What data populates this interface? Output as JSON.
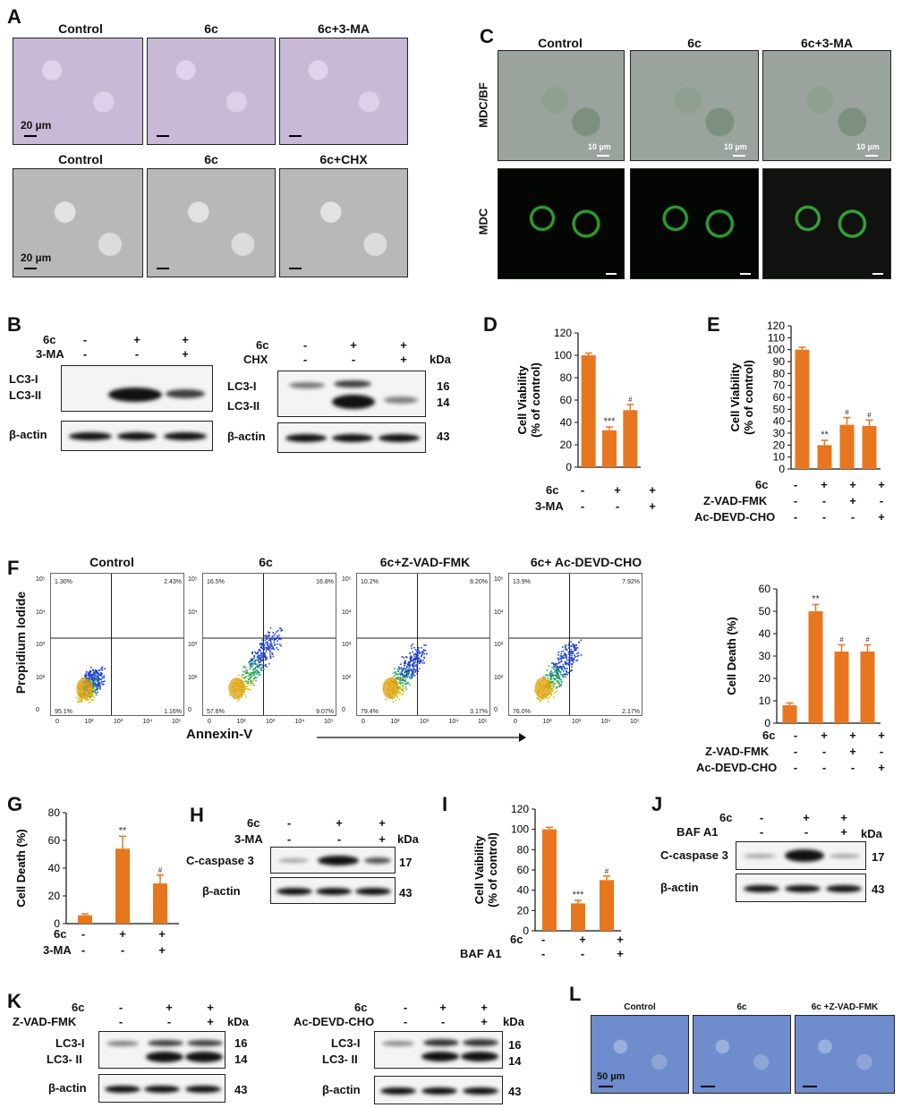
{
  "panels": {
    "A": {
      "label": "A",
      "row1": [
        "Control",
        "6c",
        "6c+3-MA"
      ],
      "row2": [
        "Control",
        "6c",
        "6c+CHX"
      ],
      "scale": "20 µm"
    },
    "C": {
      "label": "C",
      "cols": [
        "Control",
        "6c",
        "6c+3-MA"
      ],
      "rows": [
        "MDC/BF",
        "MDC"
      ],
      "scale": "10 µm"
    },
    "B": {
      "label": "B",
      "left": {
        "row_labels": [
          "6c",
          "3-MA"
        ],
        "signs": [
          [
            "-",
            "+",
            "+"
          ],
          [
            "-",
            "-",
            "+"
          ]
        ],
        "bands": [
          "LC3-I",
          "LC3-II"
        ],
        "loading": "β-actin"
      },
      "right": {
        "row_labels": [
          "6c",
          "CHX"
        ],
        "signs": [
          [
            "-",
            "+",
            "+"
          ],
          [
            "-",
            "-",
            "+"
          ]
        ],
        "bands": [
          "LC3-I",
          "LC3-II"
        ],
        "loading": "β-actin",
        "kda_label": "kDa",
        "kda": [
          "16",
          "14",
          "43"
        ]
      }
    },
    "D": {
      "label": "D",
      "row_labels": [
        "6c",
        "3-MA"
      ],
      "signs": [
        [
          "-",
          "+",
          "+"
        ],
        [
          "-",
          "-",
          "+"
        ]
      ]
    },
    "E": {
      "label": "E",
      "row_labels": [
        "6c",
        "Z-VAD-FMK",
        "Ac-DEVD-CHO"
      ],
      "signs": [
        [
          "-",
          "+",
          "+",
          "+"
        ],
        [
          "-",
          "-",
          "+",
          "-"
        ],
        [
          "-",
          "-",
          "-",
          "+"
        ]
      ]
    },
    "F": {
      "label": "F",
      "titles": [
        "Control",
        "6c",
        "6c+Z-VAD-FMK",
        "6c+ Ac-DEVD-CHO"
      ],
      "ylabel": "Propidium Iodide",
      "xlabel": "Annexin-V",
      "quadrants": [
        [
          "1.30%",
          "2.43%",
          "95.1%",
          "1.16%"
        ],
        [
          "16.5%",
          "16.8%",
          "57.6%",
          "9.07%"
        ],
        [
          "10.2%",
          "8.20%",
          "79.4%",
          "3.17%"
        ],
        [
          "13.9%",
          "7.92%",
          "76.0%",
          "2.17%"
        ]
      ],
      "ticks": [
        "0",
        "10²",
        "10³",
        "10⁴",
        "10⁵"
      ],
      "bar_row_labels": [
        "6c",
        "Z-VAD-FMK",
        "Ac-DEVD-CHO"
      ],
      "bar_signs": [
        [
          "-",
          "+",
          "+",
          "+"
        ],
        [
          "-",
          "-",
          "+",
          "-"
        ],
        [
          "-",
          "-",
          "-",
          "+"
        ]
      ]
    },
    "G": {
      "label": "G",
      "row_labels": [
        "6c",
        "3-MA"
      ],
      "signs": [
        [
          "-",
          "+",
          "+"
        ],
        [
          "-",
          "-",
          "+"
        ]
      ]
    },
    "H": {
      "label": "H",
      "row_labels": [
        "6c",
        "3-MA"
      ],
      "signs": [
        [
          "-",
          "+",
          "+"
        ],
        [
          "-",
          "-",
          "+"
        ]
      ],
      "bands": [
        "C-caspase 3",
        "β-actin"
      ],
      "kda_label": "kDa",
      "kda": [
        "17",
        "43"
      ]
    },
    "I": {
      "label": "I",
      "row_labels": [
        "6c",
        "BAF A1"
      ],
      "signs": [
        [
          "-",
          "+",
          "+"
        ],
        [
          "-",
          "-",
          "+"
        ]
      ]
    },
    "J": {
      "label": "J",
      "row_labels": [
        "6c",
        "BAF A1"
      ],
      "signs": [
        [
          "-",
          "+",
          "+"
        ],
        [
          "-",
          "-",
          "+"
        ]
      ],
      "bands": [
        "C-caspase 3",
        "β-actin"
      ],
      "kda_label": "kDa",
      "kda": [
        "17",
        "43"
      ]
    },
    "K": {
      "label": "K",
      "left": {
        "row_labels": [
          "6c",
          "Z-VAD-FMK"
        ],
        "signs": [
          [
            "-",
            "+",
            "+"
          ],
          [
            "-",
            "-",
            "+"
          ]
        ],
        "bands": [
          "LC3-I",
          "LC3- II"
        ],
        "loading": "β-actin",
        "kda_label": "kDa",
        "kda": [
          "16",
          "14",
          "43"
        ]
      },
      "right": {
        "row_labels": [
          "6c",
          "Ac-DEVD-CHO"
        ],
        "signs": [
          [
            "-",
            "+",
            "+"
          ],
          [
            "-",
            "-",
            "+"
          ]
        ],
        "bands": [
          "LC3-I",
          "LC3- II"
        ],
        "loading": "β-actin",
        "kda_label": "kDa",
        "kda": [
          "16",
          "14",
          "43"
        ]
      }
    },
    "L": {
      "label": "L",
      "titles": [
        "Control",
        "6c",
        "6c +Z-VAD-FMK"
      ],
      "scale": "50 µm"
    }
  },
  "chart_data": [
    {
      "id": "D",
      "type": "bar",
      "categories": [
        "1",
        "2",
        "3"
      ],
      "values": [
        100,
        33,
        51
      ],
      "errors": [
        2,
        3,
        5
      ],
      "annotations": [
        "",
        "***",
        "#"
      ],
      "ylabel": "Cell Viability\n(% of control)",
      "ylim": [
        0,
        120
      ],
      "yticks": [
        0,
        20,
        40,
        60,
        80,
        100,
        120
      ],
      "color": "#e8761f"
    },
    {
      "id": "E",
      "type": "bar",
      "categories": [
        "1",
        "2",
        "3",
        "4"
      ],
      "values": [
        100,
        20,
        37,
        36
      ],
      "errors": [
        2,
        4,
        6,
        5
      ],
      "annotations": [
        "",
        "**",
        "#",
        "#"
      ],
      "ylabel": "Cell Viability\n(% of control)",
      "ylim": [
        0,
        120
      ],
      "yticks": [
        0,
        10,
        20,
        30,
        40,
        50,
        60,
        70,
        80,
        90,
        100,
        110,
        120
      ],
      "color": "#e8761f"
    },
    {
      "id": "F",
      "type": "bar",
      "categories": [
        "1",
        "2",
        "3",
        "4"
      ],
      "values": [
        8,
        50,
        32,
        32
      ],
      "errors": [
        1,
        3,
        3,
        3
      ],
      "annotations": [
        "",
        "**",
        "#",
        "#"
      ],
      "ylabel": "Cell Death (%)",
      "ylim": [
        0,
        60
      ],
      "yticks": [
        0,
        10,
        20,
        30,
        40,
        50,
        60
      ],
      "color": "#e8761f"
    },
    {
      "id": "G",
      "type": "bar",
      "categories": [
        "1",
        "2",
        "3"
      ],
      "values": [
        6,
        54,
        29
      ],
      "errors": [
        1,
        9,
        6
      ],
      "annotations": [
        "",
        "**",
        "#"
      ],
      "ylabel": "Cell Death (%)",
      "ylim": [
        0,
        80
      ],
      "yticks": [
        0,
        20,
        40,
        60,
        80
      ],
      "color": "#e8761f"
    },
    {
      "id": "I",
      "type": "bar",
      "categories": [
        "1",
        "2",
        "3"
      ],
      "values": [
        100,
        27,
        50
      ],
      "errors": [
        2,
        3,
        4
      ],
      "annotations": [
        "",
        "***",
        "#"
      ],
      "ylabel": "Cell Vaibility\n(% of control)",
      "ylim": [
        0,
        120
      ],
      "yticks": [
        0,
        20,
        40,
        60,
        80,
        100,
        120
      ],
      "color": "#e8761f"
    }
  ]
}
